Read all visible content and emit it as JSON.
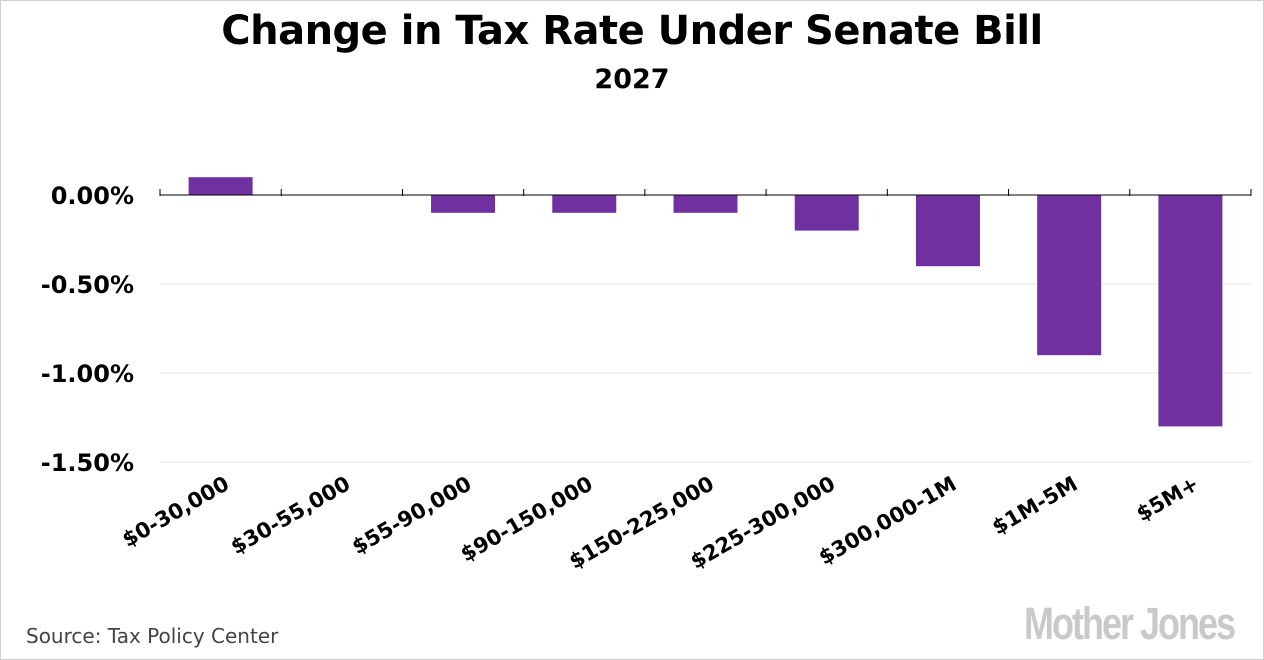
{
  "chart_data": {
    "type": "bar",
    "title": "Change in Tax Rate Under Senate Bill",
    "subtitle": "2027",
    "categories": [
      "$0-30,000",
      "$30-55,000",
      "$55-90,000",
      "$90-150,000",
      "$150-225,000",
      "$225-300,000",
      "$300,000-1M",
      "$1M-5M",
      "$5M+"
    ],
    "values": [
      0.1,
      0.0,
      -0.1,
      -0.1,
      -0.1,
      -0.2,
      -0.4,
      -0.9,
      -1.3
    ],
    "value_format": "percent",
    "y_ticks": [
      0.0,
      -0.5,
      -1.0,
      -1.5
    ],
    "y_tick_labels": [
      "0.00%",
      "-0.50%",
      "-1.00%",
      "-1.50%"
    ],
    "ylim": [
      -1.5,
      0.1
    ],
    "xlabel": "",
    "ylabel": "",
    "grid": true,
    "bar_color": "#7030a0",
    "grid_color": "#e6e6e6",
    "axis_color": "#000000"
  },
  "footer": {
    "source": "Source: Tax Policy Center",
    "brand": "Mother Jones"
  }
}
